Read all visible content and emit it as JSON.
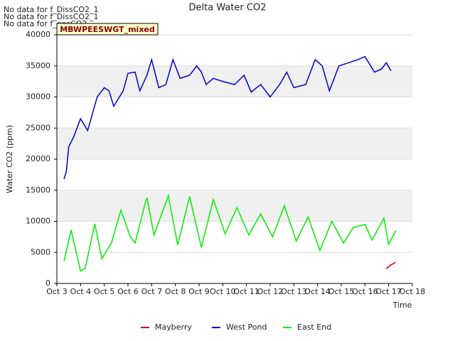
{
  "chart_data": {
    "type": "line",
    "title": "Delta Water CO2",
    "x_label": "Time",
    "y_label": "Water CO2 (ppm)",
    "notes": [
      "No data for f_DissCO2_1",
      "No data for f_DissCO2_1",
      "No data for f_eosCO2"
    ],
    "tooltip": "MBWPEESWGT_mixed",
    "xlim": [
      3,
      18
    ],
    "xticks": [
      {
        "value": 3,
        "label": "Oct 3"
      },
      {
        "value": 4,
        "label": "Oct 4"
      },
      {
        "value": 5,
        "label": "Oct 5"
      },
      {
        "value": 6,
        "label": "Oct 6"
      },
      {
        "value": 7,
        "label": "Oct 7"
      },
      {
        "value": 8,
        "label": "Oct 8"
      },
      {
        "value": 9,
        "label": "Oct 9"
      },
      {
        "value": 10,
        "label": "Oct 10"
      },
      {
        "value": 11,
        "label": "Oct 11"
      },
      {
        "value": 12,
        "label": "Oct 12"
      },
      {
        "value": 13,
        "label": "Oct 13"
      },
      {
        "value": 14,
        "label": "Oct 14"
      },
      {
        "value": 15,
        "label": "Oct 15"
      },
      {
        "value": 16,
        "label": "Oct 16"
      },
      {
        "value": 17,
        "label": "Oct 17"
      },
      {
        "value": 18,
        "label": "Oct 18"
      }
    ],
    "ylim": [
      0,
      40000
    ],
    "yticks": [
      0,
      5000,
      10000,
      15000,
      20000,
      25000,
      30000,
      35000,
      40000
    ],
    "grid": true,
    "series": [
      {
        "name": "Mayberry",
        "color": "#cc0000",
        "x": [
          16.9,
          17.0,
          17.1,
          17.2,
          17.3
        ],
        "values": [
          2400,
          2700,
          3000,
          3200,
          3400
        ]
      },
      {
        "name": "West Pond",
        "color": "#0000cc",
        "x": [
          3.3,
          3.4,
          3.5,
          3.7,
          4.0,
          4.3,
          4.7,
          5.0,
          5.2,
          5.4,
          5.8,
          6.0,
          6.3,
          6.5,
          6.8,
          7.0,
          7.3,
          7.6,
          7.9,
          8.2,
          8.6,
          8.9,
          9.1,
          9.3,
          9.6,
          10.0,
          10.5,
          10.9,
          11.2,
          11.6,
          12.0,
          12.4,
          12.7,
          13.0,
          13.5,
          13.9,
          14.2,
          14.5,
          14.9,
          15.3,
          15.7,
          16.0,
          16.4,
          16.7,
          16.9,
          17.1
        ],
        "values": [
          16800,
          18000,
          22000,
          23500,
          26500,
          24600,
          30000,
          31500,
          31000,
          28500,
          31000,
          33800,
          34000,
          31000,
          33500,
          36000,
          31500,
          32000,
          36000,
          33000,
          33500,
          35000,
          34000,
          32000,
          33000,
          32500,
          32000,
          33500,
          30800,
          32000,
          30000,
          32000,
          34000,
          31500,
          32000,
          36000,
          35000,
          31000,
          35000,
          35500,
          36000,
          36500,
          34000,
          34500,
          35500,
          34200
        ]
      },
      {
        "name": "East End",
        "color": "#00ee00",
        "x": [
          3.3,
          3.6,
          4.0,
          4.2,
          4.6,
          4.9,
          5.3,
          5.7,
          6.1,
          6.3,
          6.7,
          6.8,
          7.1,
          7.7,
          8.1,
          8.6,
          9.1,
          9.6,
          10.1,
          10.6,
          11.1,
          11.6,
          12.1,
          12.6,
          13.1,
          13.6,
          14.1,
          14.6,
          15.1,
          15.5,
          16.0,
          16.3,
          16.8,
          17.0,
          17.3
        ],
        "values": [
          3600,
          8600,
          2000,
          2500,
          9600,
          4000,
          6500,
          11800,
          7500,
          6500,
          12500,
          13800,
          7800,
          14100,
          6200,
          14000,
          5800,
          13500,
          8000,
          12200,
          7800,
          11200,
          7500,
          12500,
          6800,
          10700,
          5300,
          10000,
          6500,
          9000,
          9500,
          7000,
          10500,
          6300,
          8500
        ]
      }
    ]
  }
}
